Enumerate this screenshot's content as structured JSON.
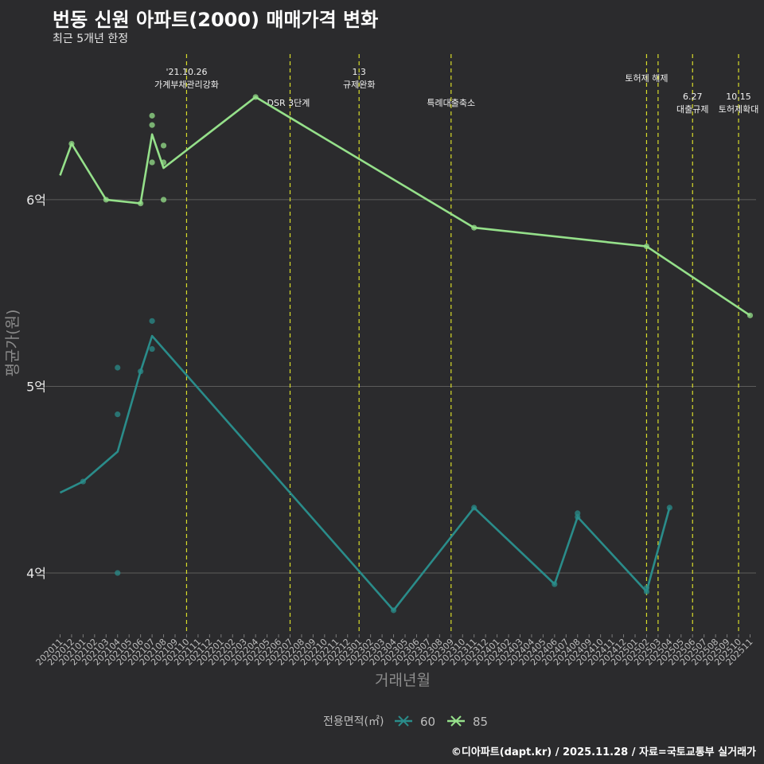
{
  "header": {
    "title": "번동 신원 아파트(2000) 매매가격 변화",
    "subtitle": "최근 5개년 한정"
  },
  "footer": {
    "credit": "©디아파트(dapt.kr) / 2025.11.28 / 자료=국토교통부 실거래가"
  },
  "colors": {
    "background": "#2b2b2d",
    "grid": "#5c5c5c",
    "series60": "#2a8c8a",
    "series85": "#95e08a",
    "eventLine": "#d8dc2a",
    "text": "#ffffff",
    "axisText": "#bdbdbd",
    "axisTitle": "#8c8c8c"
  },
  "chart_data": {
    "type": "line",
    "title": "번동 신원 아파트(2000) 매매가격 변화",
    "xlabel": "거래년월",
    "ylabel": "평균가(원)",
    "ylim": [
      3.68,
      6.78
    ],
    "yticks": [
      {
        "value": 4,
        "label": "4억"
      },
      {
        "value": 5,
        "label": "5억"
      },
      {
        "value": 6,
        "label": "6억"
      }
    ],
    "categories": [
      "202011",
      "202012",
      "202101",
      "202102",
      "202103",
      "202104",
      "202105",
      "202106",
      "202107",
      "202108",
      "202109",
      "202110",
      "202111",
      "202112",
      "202201",
      "202202",
      "202203",
      "202204",
      "202205",
      "202206",
      "202207",
      "202208",
      "202209",
      "202210",
      "202211",
      "202212",
      "202301",
      "202302",
      "202303",
      "202304",
      "202305",
      "202306",
      "202307",
      "202308",
      "202309",
      "202310",
      "202311",
      "202312",
      "202401",
      "202402",
      "202403",
      "202404",
      "202405",
      "202406",
      "202407",
      "202408",
      "202409",
      "202410",
      "202411",
      "202412",
      "202501",
      "202502",
      "202503",
      "202504",
      "202505",
      "202506",
      "202507",
      "202508",
      "202509",
      "202510",
      "202511"
    ],
    "legend": {
      "title": "전용면적(㎡)",
      "position": "bottom",
      "items": [
        {
          "key": "s60",
          "label": "60"
        },
        {
          "key": "s85",
          "label": "85"
        }
      ]
    },
    "series": [
      {
        "name": "60",
        "line": [
          {
            "x": "202011",
            "y": 4.43
          },
          {
            "x": "202012",
            "y": 4.46
          },
          {
            "x": "202101",
            "y": 4.49
          },
          {
            "x": "202104",
            "y": 4.65
          },
          {
            "x": "202106",
            "y": 5.08
          },
          {
            "x": "202107",
            "y": 5.27
          },
          {
            "x": "202304",
            "y": 3.8
          },
          {
            "x": "202311",
            "y": 4.35
          },
          {
            "x": "202406",
            "y": 3.94
          },
          {
            "x": "202408",
            "y": 4.3
          },
          {
            "x": "202502",
            "y": 3.9
          },
          {
            "x": "202504",
            "y": 4.35
          }
        ],
        "points": [
          {
            "x": "202101",
            "y": 4.49
          },
          {
            "x": "202104",
            "y": 5.1
          },
          {
            "x": "202104",
            "y": 4.85
          },
          {
            "x": "202104",
            "y": 4.0
          },
          {
            "x": "202106",
            "y": 5.08
          },
          {
            "x": "202107",
            "y": 5.35
          },
          {
            "x": "202107",
            "y": 5.2
          },
          {
            "x": "202304",
            "y": 3.8
          },
          {
            "x": "202311",
            "y": 4.35
          },
          {
            "x": "202406",
            "y": 3.94
          },
          {
            "x": "202408",
            "y": 4.32
          },
          {
            "x": "202408",
            "y": 4.3
          },
          {
            "x": "202502",
            "y": 3.92
          },
          {
            "x": "202502",
            "y": 3.9
          },
          {
            "x": "202504",
            "y": 4.35
          }
        ]
      },
      {
        "name": "85",
        "line": [
          {
            "x": "202011",
            "y": 6.13
          },
          {
            "x": "202012",
            "y": 6.3
          },
          {
            "x": "202103",
            "y": 6.0
          },
          {
            "x": "202106",
            "y": 5.98
          },
          {
            "x": "202107",
            "y": 6.35
          },
          {
            "x": "202108",
            "y": 6.17
          },
          {
            "x": "202204",
            "y": 6.55
          },
          {
            "x": "202311",
            "y": 5.85
          },
          {
            "x": "202502",
            "y": 5.75
          },
          {
            "x": "202511",
            "y": 5.38
          }
        ],
        "points": [
          {
            "x": "202012",
            "y": 6.3
          },
          {
            "x": "202103",
            "y": 6.0
          },
          {
            "x": "202106",
            "y": 5.98
          },
          {
            "x": "202107",
            "y": 6.45
          },
          {
            "x": "202107",
            "y": 6.4
          },
          {
            "x": "202107",
            "y": 6.2
          },
          {
            "x": "202108",
            "y": 6.29
          },
          {
            "x": "202108",
            "y": 6.2
          },
          {
            "x": "202108",
            "y": 6.0
          },
          {
            "x": "202204",
            "y": 6.55
          },
          {
            "x": "202311",
            "y": 5.85
          },
          {
            "x": "202502",
            "y": 5.75
          },
          {
            "x": "202511",
            "y": 5.38
          }
        ]
      }
    ],
    "events": [
      {
        "x": "202110",
        "lines": [
          "'21.10.26",
          "가계부채관리강화"
        ],
        "level": 0
      },
      {
        "x": "202207",
        "lines": [
          "DSR 3단계"
        ],
        "level": 2
      },
      {
        "x": "202301",
        "lines": [
          "1.3",
          "규제완화"
        ],
        "level": 0
      },
      {
        "x": "202309",
        "lines": [
          "특례대출축소"
        ],
        "level": 2
      },
      {
        "x": "202502",
        "lines": [
          "토허제 해제"
        ],
        "level": 1
      },
      {
        "x": "202503",
        "lines": [],
        "level": 0
      },
      {
        "x": "202506",
        "lines": [
          "6.27",
          "대출규제"
        ],
        "level": 3
      },
      {
        "x": "202510",
        "lines": [
          "10.15",
          "토허제확대"
        ],
        "level": 3
      }
    ]
  }
}
